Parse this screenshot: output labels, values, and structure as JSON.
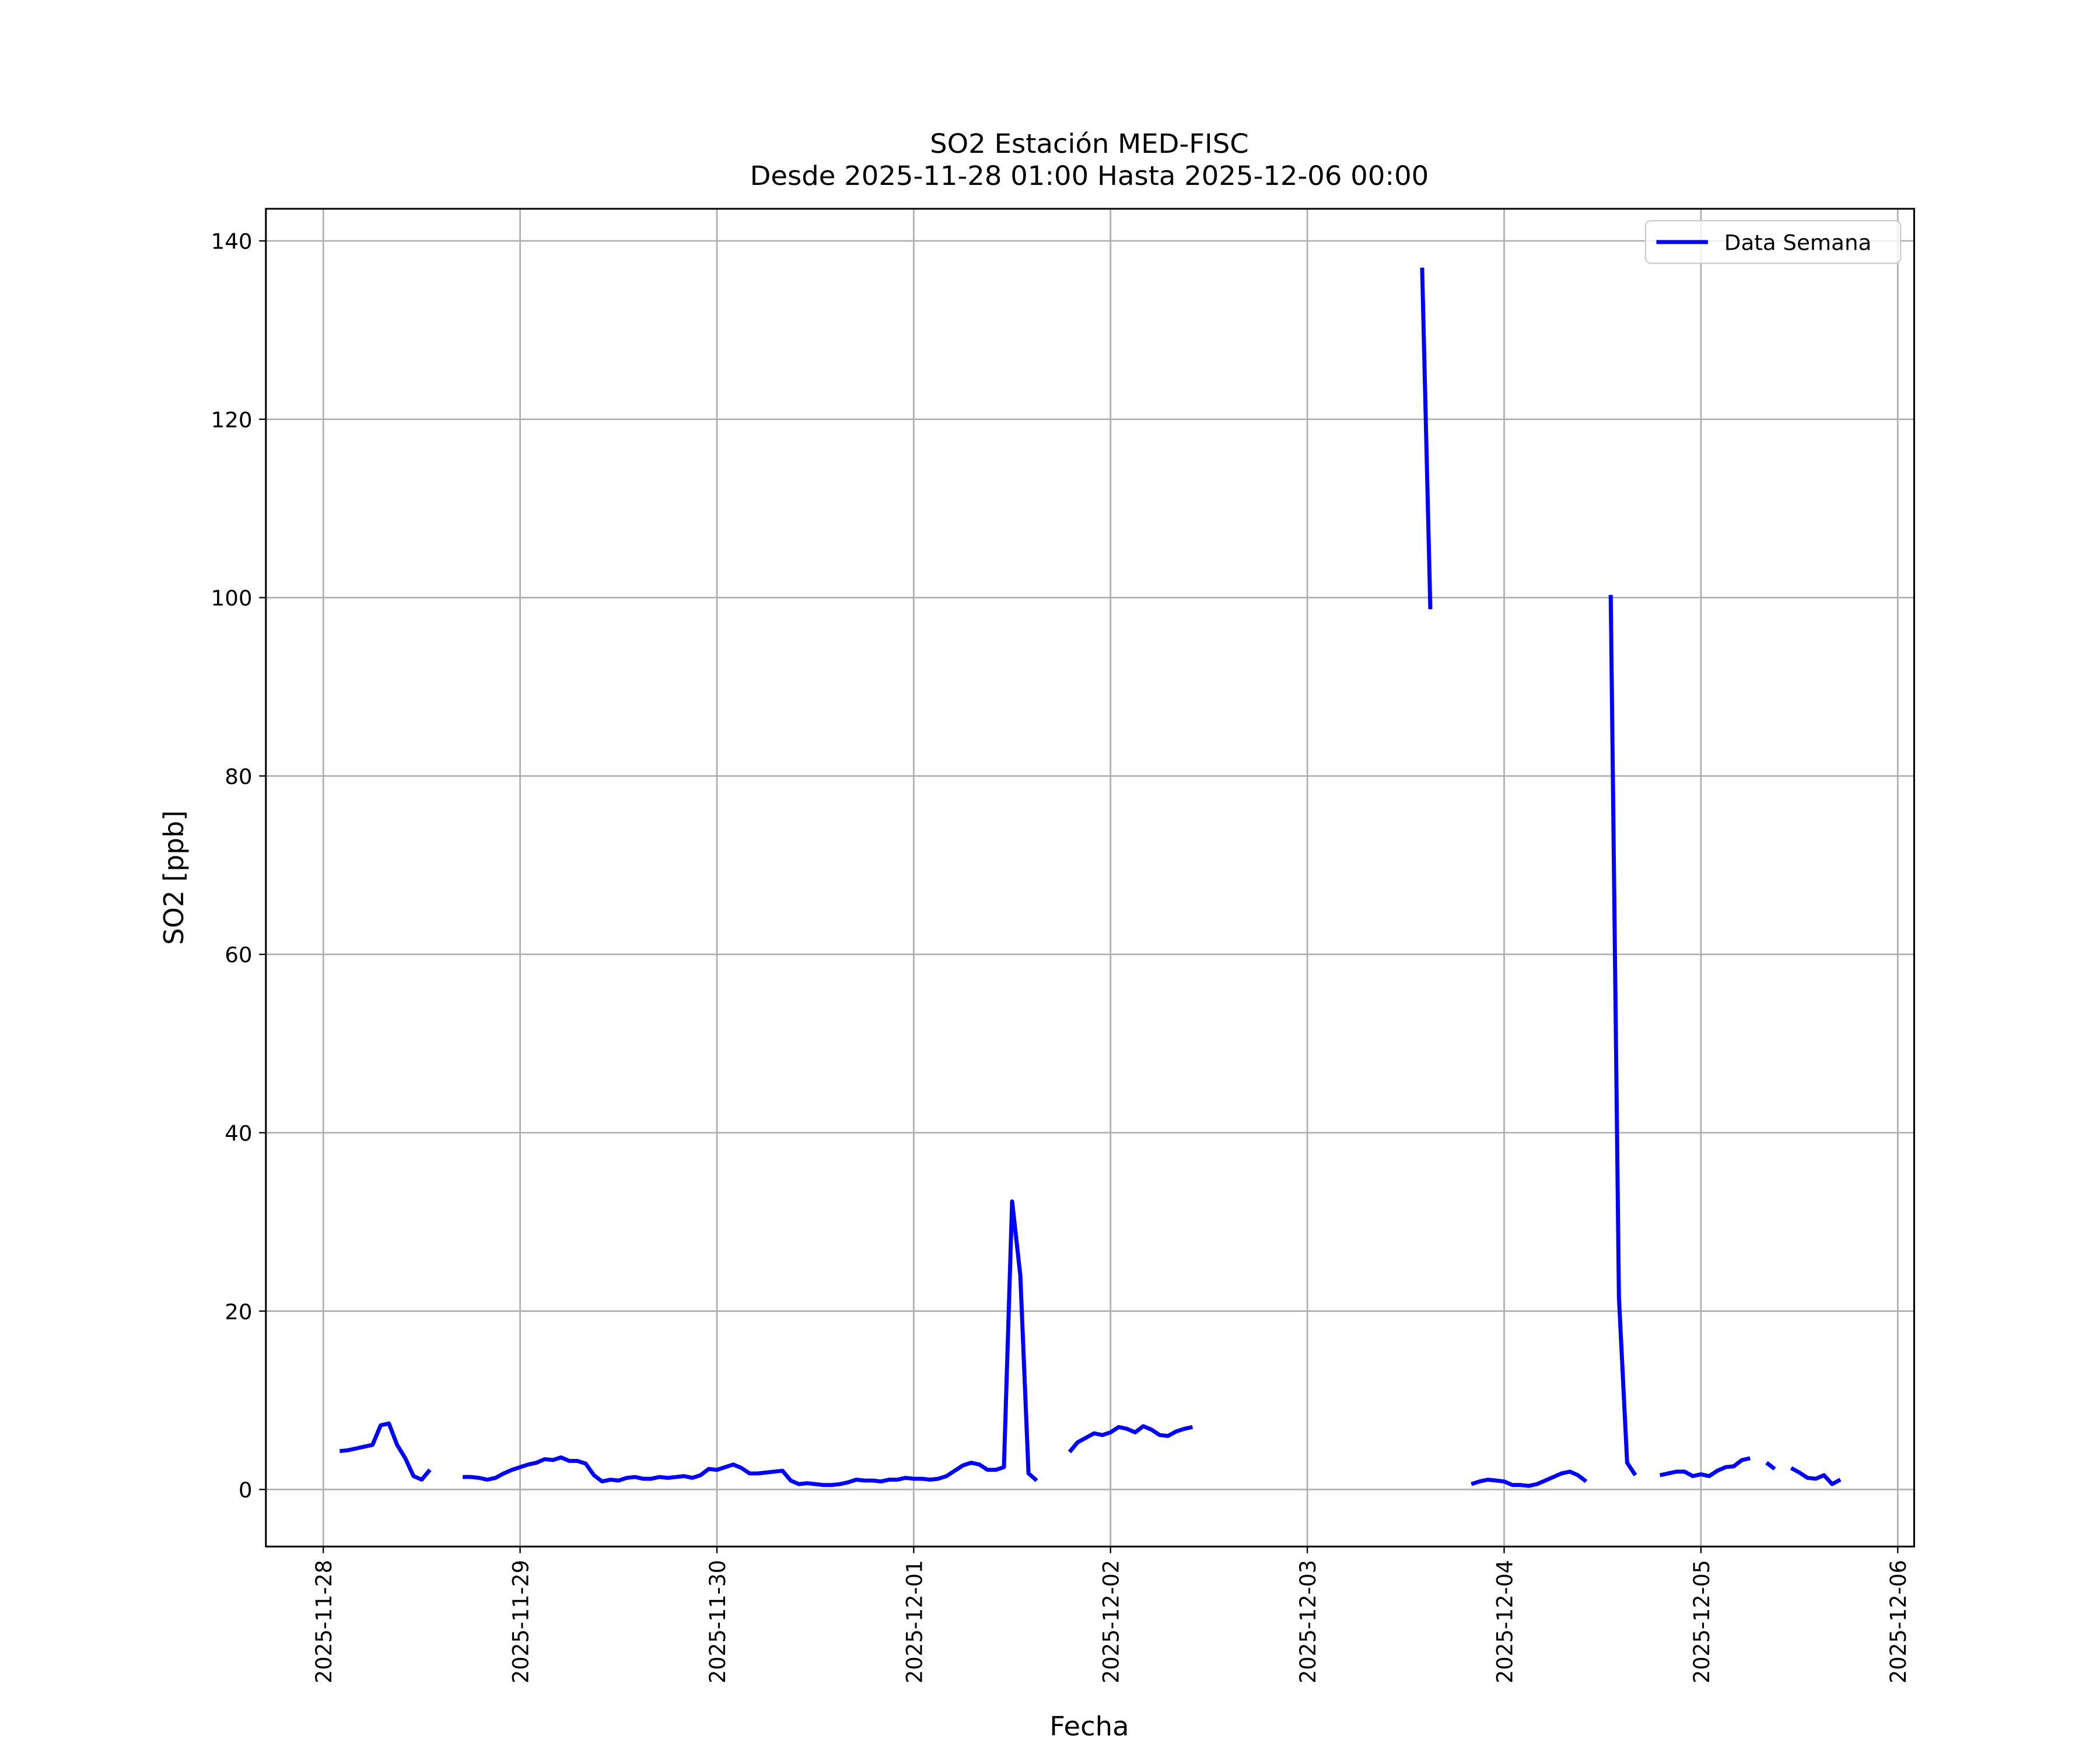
{
  "chart_data": {
    "type": "line",
    "title": "SO2 Estación MED-FISC",
    "subtitle": "Desde 2025-11-28 01:00 Hasta 2025-12-06 00:00",
    "xlabel": "Fecha",
    "ylabel": "SO2 [ppb]",
    "x": [
      "2025-11-28 02:00",
      "2025-11-28 03:00",
      "2025-11-28 04:00",
      "2025-11-28 05:00",
      "2025-11-28 06:00",
      "2025-11-28 07:00",
      "2025-11-28 08:00",
      "2025-11-28 09:00",
      "2025-11-28 10:00",
      "2025-11-28 11:00",
      "2025-11-28 12:00",
      "2025-11-28 13:00",
      "2025-11-28 15:00",
      "2025-11-28 17:00",
      "2025-11-28 18:00",
      "2025-11-28 19:00",
      "2025-11-28 20:00",
      "2025-11-28 21:00",
      "2025-11-28 22:00",
      "2025-11-28 23:00",
      "2025-11-29 00:00",
      "2025-11-29 01:00",
      "2025-11-29 02:00",
      "2025-11-29 03:00",
      "2025-11-29 04:00",
      "2025-11-29 05:00",
      "2025-11-29 06:00",
      "2025-11-29 07:00",
      "2025-11-29 08:00",
      "2025-11-29 09:00",
      "2025-11-29 10:00",
      "2025-11-29 11:00",
      "2025-11-29 12:00",
      "2025-11-29 13:00",
      "2025-11-29 14:00",
      "2025-11-29 15:00",
      "2025-11-29 16:00",
      "2025-11-29 17:00",
      "2025-11-29 18:00",
      "2025-11-29 19:00",
      "2025-11-29 20:00",
      "2025-11-29 21:00",
      "2025-11-29 22:00",
      "2025-11-29 23:00",
      "2025-11-30 00:00",
      "2025-11-30 01:00",
      "2025-11-30 02:00",
      "2025-11-30 03:00",
      "2025-11-30 04:00",
      "2025-11-30 05:00",
      "2025-11-30 06:00",
      "2025-11-30 07:00",
      "2025-11-30 08:00",
      "2025-11-30 09:00",
      "2025-11-30 10:00",
      "2025-11-30 11:00",
      "2025-11-30 12:00",
      "2025-11-30 13:00",
      "2025-11-30 14:00",
      "2025-11-30 15:00",
      "2025-11-30 16:00",
      "2025-11-30 17:00",
      "2025-11-30 18:00",
      "2025-11-30 19:00",
      "2025-11-30 20:00",
      "2025-11-30 21:00",
      "2025-11-30 22:00",
      "2025-11-30 23:00",
      "2025-12-01 00:00",
      "2025-12-01 01:00",
      "2025-12-01 02:00",
      "2025-12-01 03:00",
      "2025-12-01 04:00",
      "2025-12-01 05:00",
      "2025-12-01 06:00",
      "2025-12-01 07:00",
      "2025-12-01 08:00",
      "2025-12-01 09:00",
      "2025-12-01 10:00",
      "2025-12-01 11:00",
      "2025-12-01 12:00",
      "2025-12-01 13:00",
      "2025-12-01 14:00",
      "2025-12-01 15:00",
      "2025-12-01 17:00",
      "2025-12-01 19:00",
      "2025-12-01 20:00",
      "2025-12-01 21:00",
      "2025-12-01 22:00",
      "2025-12-01 23:00",
      "2025-12-02 00:00",
      "2025-12-02 01:00",
      "2025-12-02 02:00",
      "2025-12-02 03:00",
      "2025-12-02 04:00",
      "2025-12-02 05:00",
      "2025-12-02 06:00",
      "2025-12-02 07:00",
      "2025-12-02 08:00",
      "2025-12-02 09:00",
      "2025-12-02 10:00",
      "2025-12-03 00:00",
      "2025-12-03 14:00",
      "2025-12-03 15:00",
      "2025-12-03 17:00",
      "2025-12-03 20:00",
      "2025-12-03 21:00",
      "2025-12-03 22:00",
      "2025-12-03 23:00",
      "2025-12-04 00:00",
      "2025-12-04 01:00",
      "2025-12-04 02:00",
      "2025-12-04 03:00",
      "2025-12-04 04:00",
      "2025-12-04 05:00",
      "2025-12-04 06:00",
      "2025-12-04 07:00",
      "2025-12-04 08:00",
      "2025-12-04 09:00",
      "2025-12-04 10:00",
      "2025-12-04 12:00",
      "2025-12-04 13:00",
      "2025-12-04 14:00",
      "2025-12-04 15:00",
      "2025-12-04 16:00",
      "2025-12-04 17:00",
      "2025-12-04 19:00",
      "2025-12-04 20:00",
      "2025-12-04 21:00",
      "2025-12-04 22:00",
      "2025-12-04 23:00",
      "2025-12-05 00:00",
      "2025-12-05 01:00",
      "2025-12-05 02:00",
      "2025-12-05 03:00",
      "2025-12-05 04:00",
      "2025-12-05 05:00",
      "2025-12-05 06:00",
      "2025-12-05 07:00",
      "2025-12-05 08:00",
      "2025-12-05 09:00",
      "2025-12-05 10:00",
      "2025-12-05 11:00",
      "2025-12-05 12:00",
      "2025-12-05 13:00",
      "2025-12-05 14:00",
      "2025-12-05 15:00",
      "2025-12-05 16:00",
      "2025-12-05 17:00"
    ],
    "series": [
      {
        "name": "Data Semana",
        "color": "#0000ff",
        "values": [
          4.3,
          4.4,
          4.6,
          4.8,
          5.0,
          7.2,
          7.4,
          5.0,
          3.5,
          1.5,
          1.1,
          2.2,
          null,
          1.4,
          1.4,
          1.3,
          1.1,
          1.3,
          1.8,
          2.2,
          2.5,
          2.8,
          3.0,
          3.4,
          3.3,
          3.6,
          3.2,
          3.2,
          2.9,
          1.6,
          0.9,
          1.1,
          1.0,
          1.3,
          1.4,
          1.2,
          1.2,
          1.4,
          1.3,
          1.4,
          1.5,
          1.3,
          1.6,
          2.3,
          2.2,
          2.5,
          2.8,
          2.4,
          1.8,
          1.8,
          1.9,
          2.0,
          2.1,
          1.0,
          0.6,
          0.7,
          0.6,
          0.5,
          0.5,
          0.6,
          0.8,
          1.1,
          1.0,
          1.0,
          0.9,
          1.1,
          1.1,
          1.3,
          1.2,
          1.2,
          1.1,
          1.2,
          1.5,
          2.1,
          2.7,
          3.0,
          2.8,
          2.2,
          2.2,
          2.5,
          32.3,
          24.0,
          1.8,
          1.0,
          null,
          4.2,
          5.3,
          5.8,
          6.3,
          6.1,
          6.4,
          7.0,
          6.8,
          6.4,
          7.1,
          6.7,
          6.1,
          6.0,
          6.5,
          6.8,
          7.0,
          null,
          137.0,
          98.7,
          null,
          0.6,
          0.9,
          1.1,
          1.0,
          0.9,
          0.5,
          0.5,
          0.4,
          0.6,
          1.0,
          1.4,
          1.8,
          2.0,
          1.6,
          0.9,
          null,
          100.3,
          21.5,
          3.0,
          1.6,
          null,
          1.6,
          1.8,
          2.0,
          2.0,
          1.5,
          1.7,
          1.5,
          2.1,
          2.5,
          2.6,
          3.3,
          3.5,
          null,
          3.0,
          2.3,
          null,
          2.4,
          1.9,
          1.3,
          1.2,
          1.6,
          0.6,
          1.1
        ]
      }
    ],
    "xlim": [
      "2025-11-27 17:00",
      "2025-12-06 02:00"
    ],
    "xticks": [
      "2025-11-28",
      "2025-11-29",
      "2025-11-30",
      "2025-12-01",
      "2025-12-02",
      "2025-12-03",
      "2025-12-04",
      "2025-12-05",
      "2025-12-06"
    ],
    "ylim": [
      -6.4,
      143.6
    ],
    "yticks": [
      0,
      20,
      40,
      60,
      80,
      100,
      120,
      140
    ],
    "grid": true,
    "legend": "upper right"
  }
}
